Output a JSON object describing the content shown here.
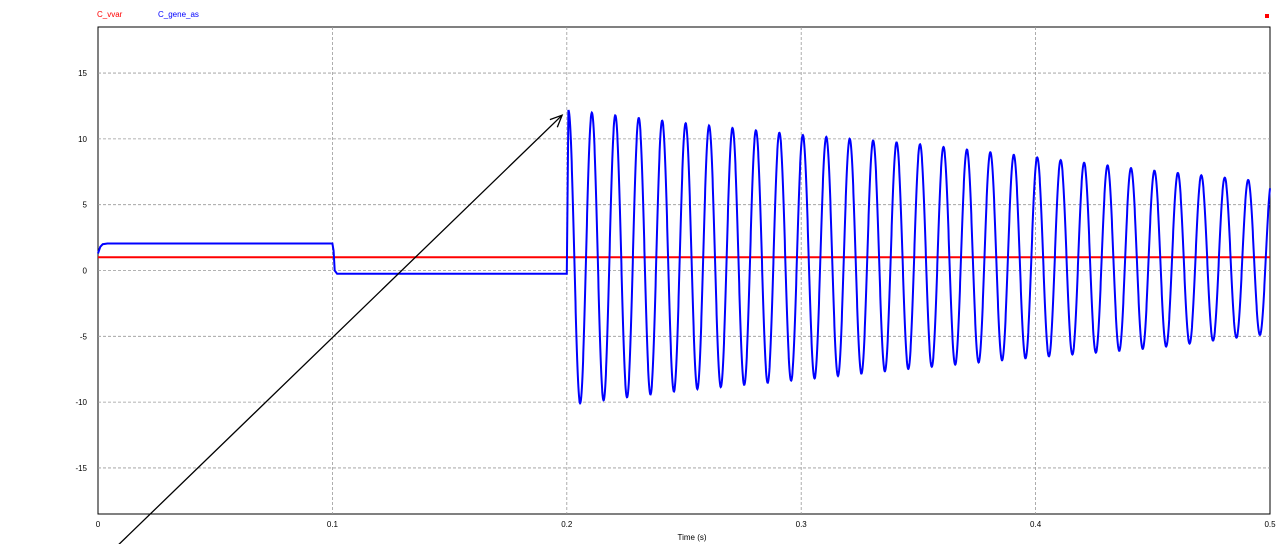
{
  "chart_data": {
    "type": "line",
    "xlabel": "Time (s)",
    "ylabel": "",
    "xlim": [
      0,
      0.5
    ],
    "ylim": [
      -18.5,
      18.5
    ],
    "grid": true,
    "legend": "top-left",
    "x_ticks": [
      0,
      0.1,
      0.2,
      0.3,
      0.4,
      0.5
    ],
    "x_tick_labels": [
      "0",
      "0.1",
      "0.2",
      "0.3",
      "0.4",
      "0.5"
    ],
    "y_ticks": [
      15,
      10,
      5,
      0,
      -5,
      -10,
      -15
    ],
    "y_tick_labels": [
      "15",
      "10",
      "5",
      "0",
      "-5",
      "-10",
      "-15"
    ],
    "series": [
      {
        "name": "C_vvar",
        "color": "#ff0000",
        "x": [
          0,
          0.5
        ],
        "y": [
          1.0,
          1.0
        ]
      },
      {
        "name": "C_gene_as",
        "color": "#0000ff",
        "segments": [
          {
            "x": [
              0,
              0.001,
              0.002,
              0.004,
              0.1,
              0.1005,
              0.101,
              0.102,
              0.2,
              0.2007
            ],
            "y": [
              1.3,
              1.8,
              2.0,
              2.05,
              2.05,
              1.5,
              0.0,
              -0.25,
              -0.25,
              12.2
            ]
          },
          {
            "kind": "oscillation",
            "x_start": 0.2007,
            "x_end": 0.5,
            "frequency_hz": 100,
            "peaks_x": [
              0.2,
              0.25,
              0.3,
              0.35,
              0.4,
              0.45,
              0.495
            ],
            "peaks_y": [
              12.2,
              11.2,
              10.3,
              9.6,
              8.6,
              7.6,
              6.8
            ],
            "troughs_x": [
              0.205,
              0.25,
              0.3,
              0.35,
              0.4,
              0.45,
              0.495
            ],
            "troughs_y": [
              -10.1,
              -9.1,
              -8.3,
              -7.4,
              -6.6,
              -5.9,
              -4.9
            ]
          }
        ]
      }
    ],
    "annotation": {
      "type": "arrow",
      "from": [
        0.002,
        -22
      ],
      "to": [
        0.198,
        11.8
      ]
    }
  }
}
